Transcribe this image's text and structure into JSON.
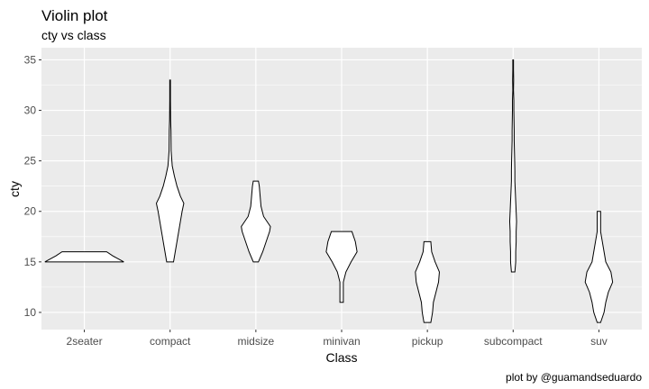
{
  "chart_data": {
    "type": "violin",
    "title": "Violin plot",
    "subtitle": "cty vs class",
    "xlabel": "Class",
    "ylabel": "cty",
    "caption": "plot by @guamandseduardo",
    "categories": [
      "2seater",
      "compact",
      "midsize",
      "minivan",
      "pickup",
      "subcompact",
      "suv"
    ],
    "ylim": [
      8.3,
      36.2
    ],
    "yticks": [
      10,
      15,
      20,
      25,
      30,
      35
    ],
    "grid": true,
    "colors": {
      "panel": "#ebebeb",
      "grid": "#ffffff",
      "fill": "#ffffff",
      "outline": "#000000"
    },
    "violins": [
      {
        "category": "2seater",
        "profile": [
          [
            15,
            0.46
          ],
          [
            15.6,
            0.33
          ],
          [
            16,
            0.26
          ]
        ]
      },
      {
        "category": "compact",
        "profile": [
          [
            15,
            0.04
          ],
          [
            16,
            0.06
          ],
          [
            17,
            0.08
          ],
          [
            18,
            0.1
          ],
          [
            19,
            0.12
          ],
          [
            20,
            0.14
          ],
          [
            20.8,
            0.16
          ],
          [
            21.5,
            0.12
          ],
          [
            22.5,
            0.08
          ],
          [
            23.5,
            0.05
          ],
          [
            24.5,
            0.025
          ],
          [
            26,
            0.012
          ],
          [
            28,
            0.01
          ],
          [
            29,
            0.006
          ],
          [
            31,
            0.004
          ],
          [
            33,
            0.004
          ]
        ]
      },
      {
        "category": "midsize",
        "profile": [
          [
            15,
            0.03
          ],
          [
            16,
            0.08
          ],
          [
            17,
            0.12
          ],
          [
            18,
            0.16
          ],
          [
            18.5,
            0.17
          ],
          [
            19.5,
            0.09
          ],
          [
            20.5,
            0.06
          ],
          [
            21.5,
            0.05
          ],
          [
            22.5,
            0.04
          ],
          [
            23,
            0.03
          ]
        ]
      },
      {
        "category": "minivan",
        "profile": [
          [
            11,
            0.02
          ],
          [
            11.5,
            0.02
          ],
          [
            12,
            0.02
          ],
          [
            13,
            0.02
          ],
          [
            14,
            0.05
          ],
          [
            15,
            0.11
          ],
          [
            16,
            0.18
          ],
          [
            17,
            0.16
          ],
          [
            18,
            0.12
          ]
        ]
      },
      {
        "category": "pickup",
        "profile": [
          [
            9,
            0.04
          ],
          [
            10,
            0.06
          ],
          [
            11,
            0.07
          ],
          [
            12,
            0.1
          ],
          [
            13,
            0.13
          ],
          [
            14,
            0.14
          ],
          [
            15,
            0.09
          ],
          [
            16,
            0.05
          ],
          [
            17,
            0.04
          ]
        ]
      },
      {
        "category": "subcompact",
        "profile": [
          [
            14,
            0.02
          ],
          [
            15,
            0.03
          ],
          [
            16,
            0.03
          ],
          [
            17,
            0.035
          ],
          [
            18,
            0.035
          ],
          [
            19,
            0.04
          ],
          [
            20,
            0.035
          ],
          [
            21,
            0.03
          ],
          [
            22,
            0.025
          ],
          [
            23,
            0.02
          ],
          [
            24,
            0.02
          ],
          [
            25,
            0.018
          ],
          [
            26,
            0.015
          ],
          [
            27,
            0.012
          ],
          [
            28,
            0.012
          ],
          [
            29,
            0.01
          ],
          [
            30,
            0.008
          ],
          [
            31,
            0.008
          ],
          [
            32,
            0.004
          ],
          [
            33,
            0.006
          ],
          [
            34,
            0.004
          ],
          [
            35,
            0.004
          ]
        ]
      },
      {
        "category": "suv",
        "profile": [
          [
            9,
            0.02
          ],
          [
            10,
            0.06
          ],
          [
            11,
            0.08
          ],
          [
            12,
            0.11
          ],
          [
            13,
            0.16
          ],
          [
            14,
            0.14
          ],
          [
            15,
            0.08
          ],
          [
            16,
            0.06
          ],
          [
            17,
            0.04
          ],
          [
            18,
            0.02
          ],
          [
            19,
            0.02
          ],
          [
            20,
            0.02
          ]
        ]
      }
    ]
  }
}
